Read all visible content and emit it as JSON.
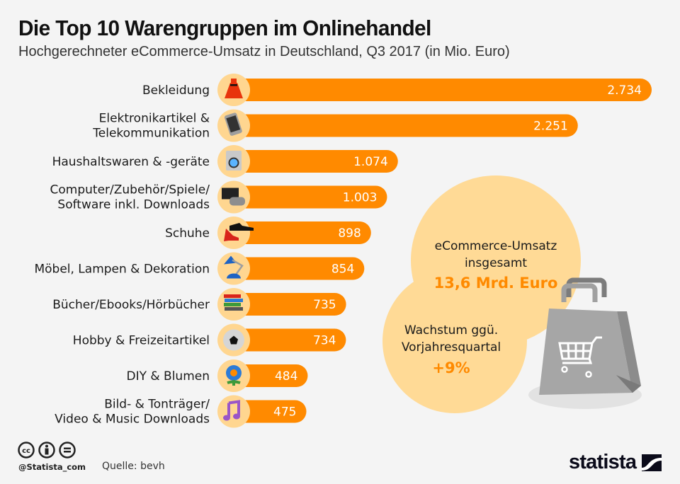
{
  "header": {
    "title": "Die Top 10 Warengruppen im Onlinehandel",
    "subtitle": "Hochgerechneter eCommerce-Umsatz in Deutschland, Q3 2017 (in Mio. Euro)"
  },
  "colors": {
    "bar": "#ff8a00",
    "icon_circle": "#ffd690",
    "bubble": "#ffda96",
    "accent_text": "#ff8a00",
    "background": "#f4f4f4"
  },
  "chart_data": {
    "type": "bar",
    "orientation": "horizontal",
    "title": "Die Top 10 Warengruppen im Onlinehandel",
    "subtitle": "Hochgerechneter eCommerce-Umsatz in Deutschland, Q3 2017 (in Mio. Euro)",
    "xlabel": "",
    "ylabel": "",
    "unit": "Mio. Euro",
    "xlim": [
      0,
      2734
    ],
    "grid": false,
    "categories": [
      [
        "Bekleidung"
      ],
      [
        "Elektronikartikel &",
        "Telekommunikation"
      ],
      [
        "Haushaltswaren & -geräte"
      ],
      [
        "Computer/Zubehör/Spiele/",
        "Software inkl. Downloads"
      ],
      [
        "Schuhe"
      ],
      [
        "Möbel, Lampen & Dekoration"
      ],
      [
        "Bücher/Ebooks/Hörbücher"
      ],
      [
        "Hobby & Freizeitartikel"
      ],
      [
        "DIY & Blumen"
      ],
      [
        "Bild- & Tonträger/",
        "Video & Music Downloads"
      ]
    ],
    "values": [
      2734,
      2251,
      1074,
      1003,
      898,
      854,
      735,
      734,
      484,
      475
    ],
    "value_labels": [
      "2.734",
      "2.251",
      "1.074",
      "1.003",
      "898",
      "854",
      "735",
      "734",
      "484",
      "475"
    ],
    "icons": [
      "dress-icon",
      "smartphone-icon",
      "washing-machine-icon",
      "computer-gamepad-icon",
      "shoes-icon",
      "desk-lamp-icon",
      "books-icon",
      "soccer-ball-icon",
      "flower-icon",
      "music-note-icon"
    ]
  },
  "callouts": {
    "total": {
      "lines": [
        "eCommerce-Umsatz",
        "insgesamt"
      ],
      "value": "13,6 Mrd. Euro"
    },
    "growth": {
      "lines": [
        "Wachstum ggü.",
        "Vorjahresquartal"
      ],
      "value": "+9%"
    },
    "icon": "shopping-bag-cart-icon"
  },
  "footer": {
    "license_icons": [
      "cc-icon",
      "by-icon",
      "nd-icon"
    ],
    "handle": "@Statista_com",
    "source": "Quelle: bevh",
    "brand": "statista"
  }
}
